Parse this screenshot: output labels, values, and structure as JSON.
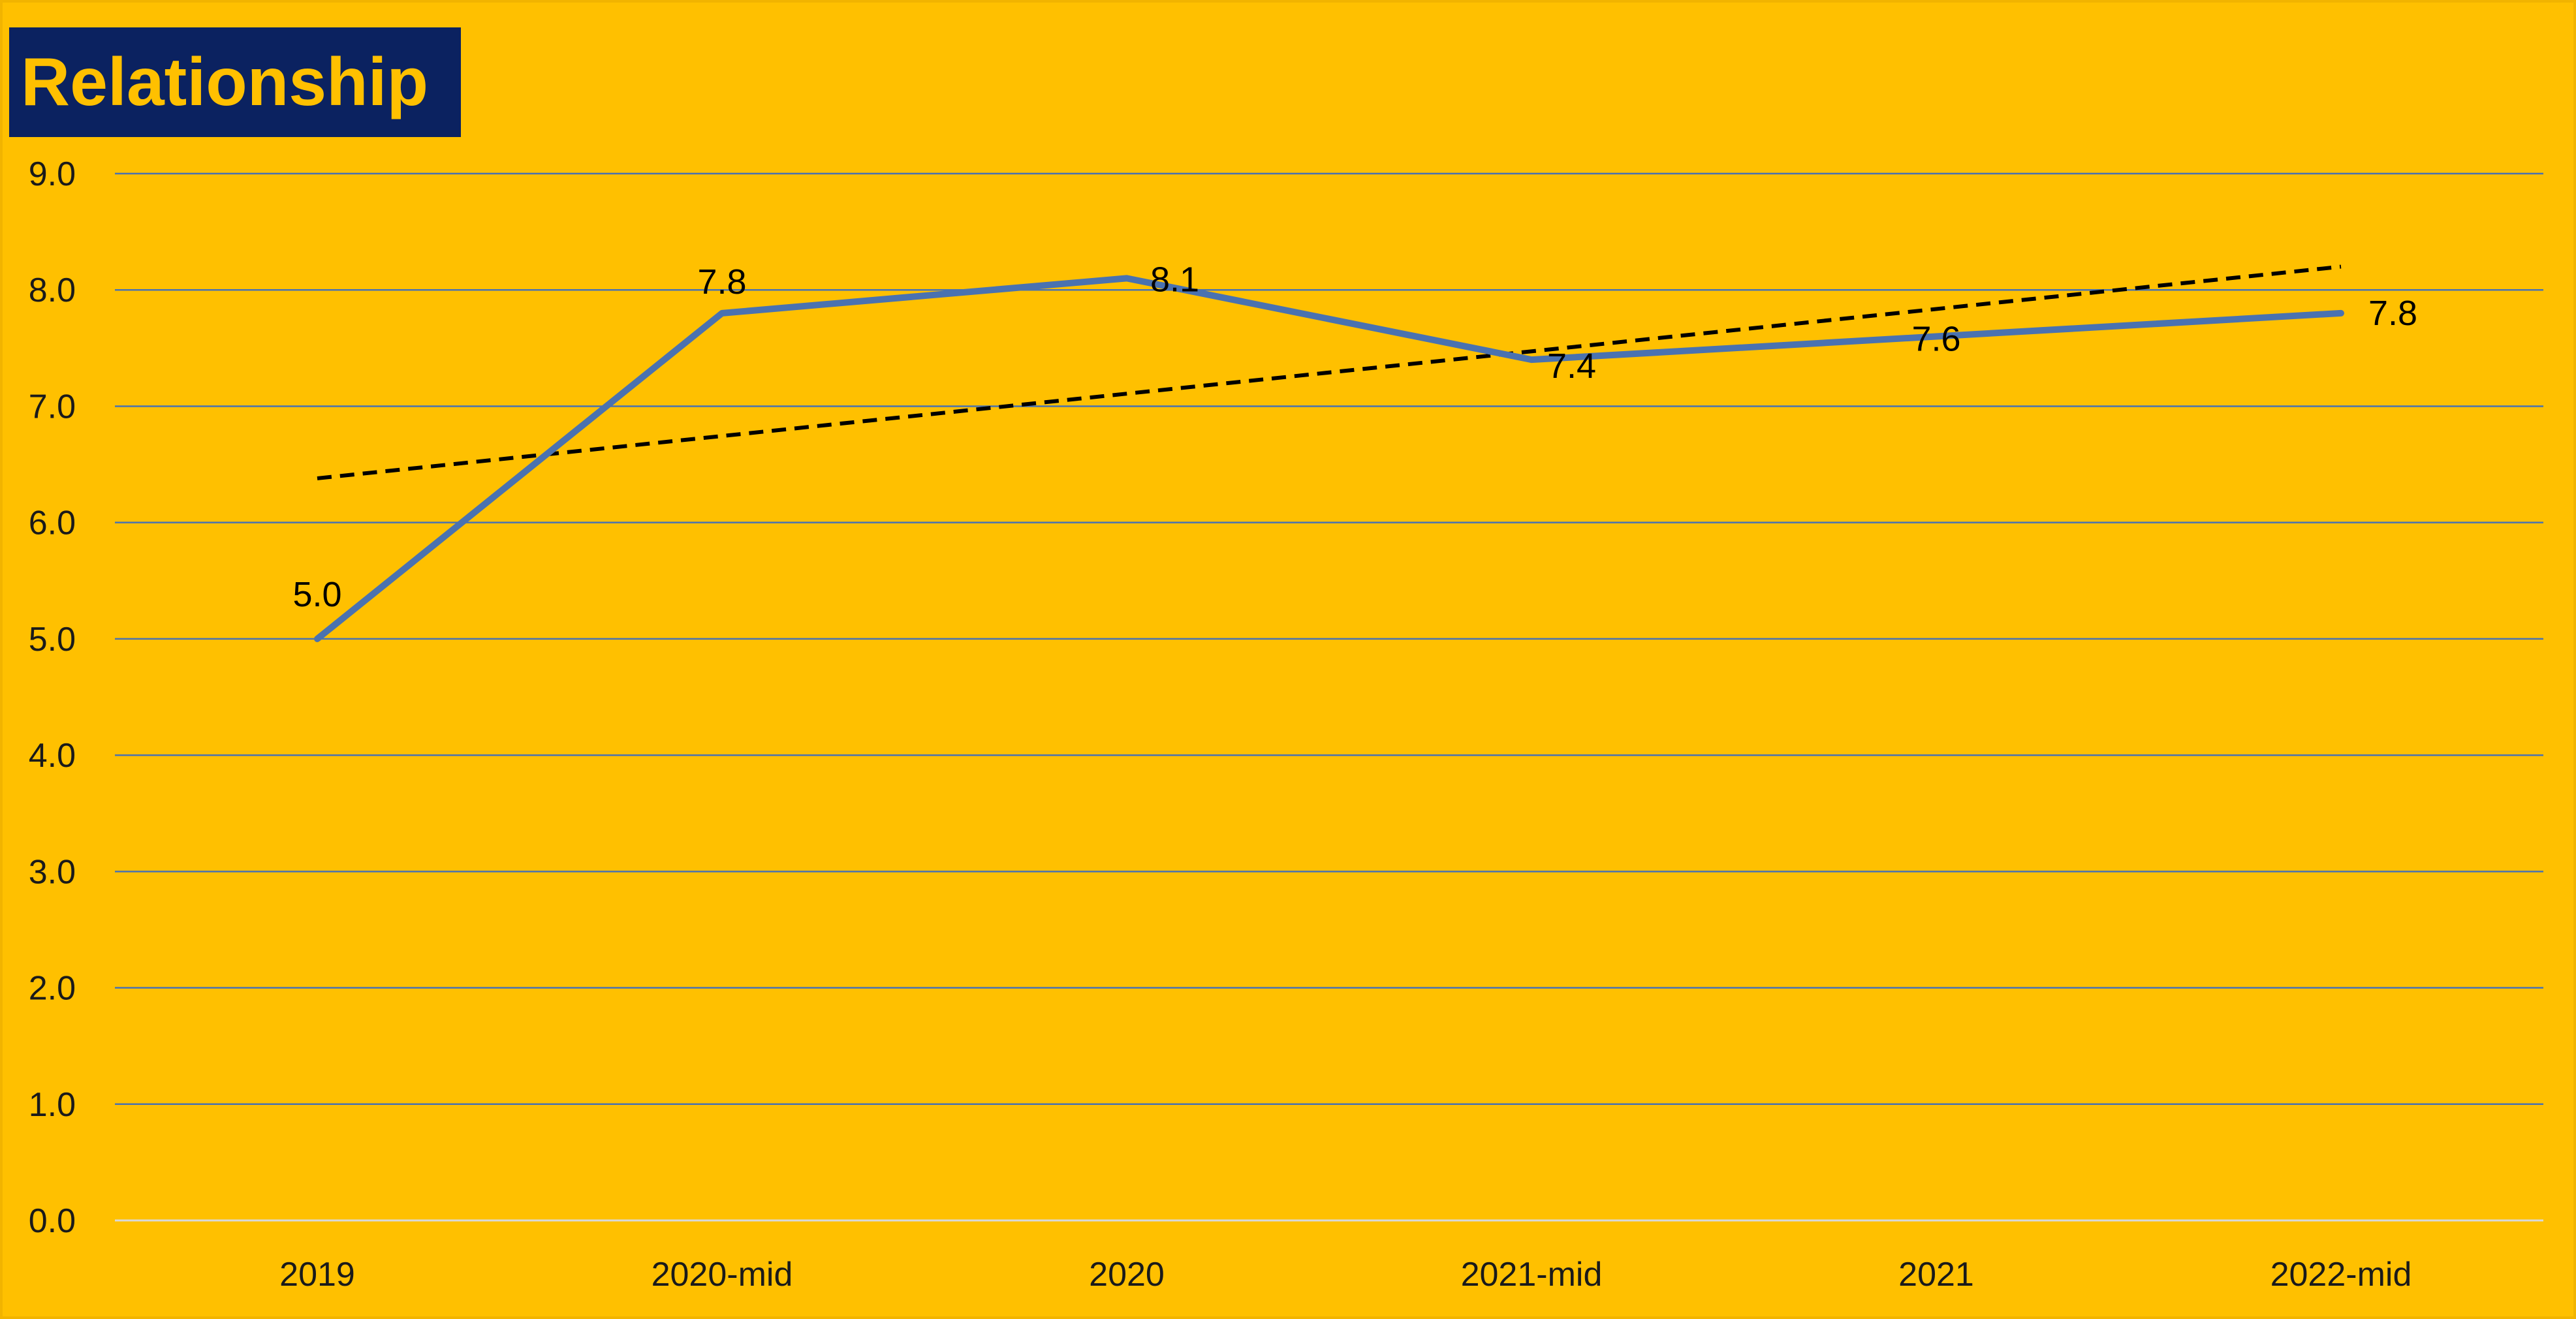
{
  "chart_data": {
    "type": "line",
    "title": "Relationship",
    "categories": [
      "2019",
      "2020-mid",
      "2020",
      "2021-mid",
      "2021",
      "2022-mid"
    ],
    "series": [
      {
        "values": [
          5.0,
          7.8,
          8.1,
          7.4,
          7.6,
          7.8
        ],
        "data_labels": [
          "5.0",
          "7.8",
          "8.1",
          "7.4",
          "7.6",
          "7.8"
        ],
        "color": "#4a72b0"
      }
    ],
    "trendline": {
      "type": "linear",
      "style": "dashed",
      "color": "#000000",
      "start": 6.38,
      "end": 8.2
    },
    "ylim": [
      0,
      9
    ],
    "yticks": [
      "0.0",
      "1.0",
      "2.0",
      "3.0",
      "4.0",
      "5.0",
      "6.0",
      "7.0",
      "8.0",
      "9.0"
    ],
    "grid": true,
    "gridline_color": "#4a72b0",
    "background_color": "#ffc000",
    "title_bg_color": "#0b2260",
    "title_text_color": "#ffc000",
    "xlabel": "",
    "ylabel": ""
  }
}
